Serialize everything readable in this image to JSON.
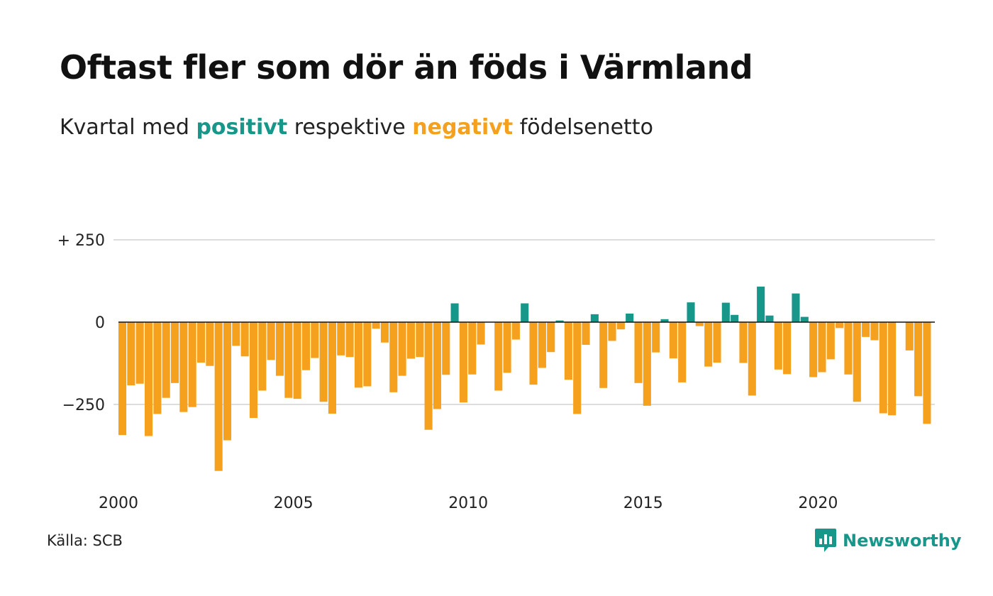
{
  "title": "Oftast fler som dör än föds i Värmland",
  "subtitle": {
    "before": "Kvartal med",
    "positive_word": "positivt",
    "middle": "respektive",
    "negative_word": "negativt",
    "after": "födelsenetto"
  },
  "source": "Källa: SCB",
  "logo": {
    "text": "Newsworthy",
    "icon": "newsworthy-chat-bar-icon"
  },
  "colors": {
    "positive": "#17968a",
    "negative": "#f5a11d",
    "grid": "#dddddd",
    "zero": "#111111"
  },
  "chart_data": {
    "type": "bar",
    "title": "Oftast fler som dör än föds i Värmland",
    "subtitle": "Kvartal med positivt respektive negativt födelsenetto",
    "xlabel": "",
    "ylabel": "",
    "x_start": "2000 Q1",
    "x_ticks": [
      "2000",
      "2005",
      "2010",
      "2015",
      "2020"
    ],
    "y_ticks": [
      {
        "value": 250,
        "label": "+ 250"
      },
      {
        "value": 0,
        "label": "0"
      },
      {
        "value": -250,
        "label": "−250"
      }
    ],
    "ylim": [
      -470,
      250
    ],
    "grid": true,
    "values": [
      -343,
      -192,
      -187,
      -346,
      -279,
      -230,
      -185,
      -273,
      -258,
      -123,
      -133,
      -452,
      -359,
      -72,
      -104,
      -291,
      -208,
      -115,
      -163,
      -230,
      -233,
      -146,
      -109,
      -242,
      -278,
      -101,
      -106,
      -199,
      -195,
      -20,
      -62,
      -213,
      -163,
      -111,
      -106,
      -327,
      -264,
      -160,
      57,
      -244,
      -159,
      -68,
      0,
      -208,
      -154,
      -53,
      57,
      -190,
      -139,
      -91,
      5,
      -175,
      -279,
      -69,
      24,
      -200,
      -57,
      -22,
      26,
      -185,
      -254,
      -92,
      9,
      -110,
      -183,
      60,
      -12,
      -135,
      -123,
      59,
      22,
      -124,
      -223,
      108,
      20,
      -144,
      -158,
      87,
      16,
      -167,
      -152,
      -113,
      -18,
      -159,
      -242,
      -45,
      -55,
      -277,
      -283,
      0,
      -86,
      -225,
      -309
    ],
    "sign_coloring": {
      "positive": "positivt",
      "negative": "negativt"
    }
  }
}
